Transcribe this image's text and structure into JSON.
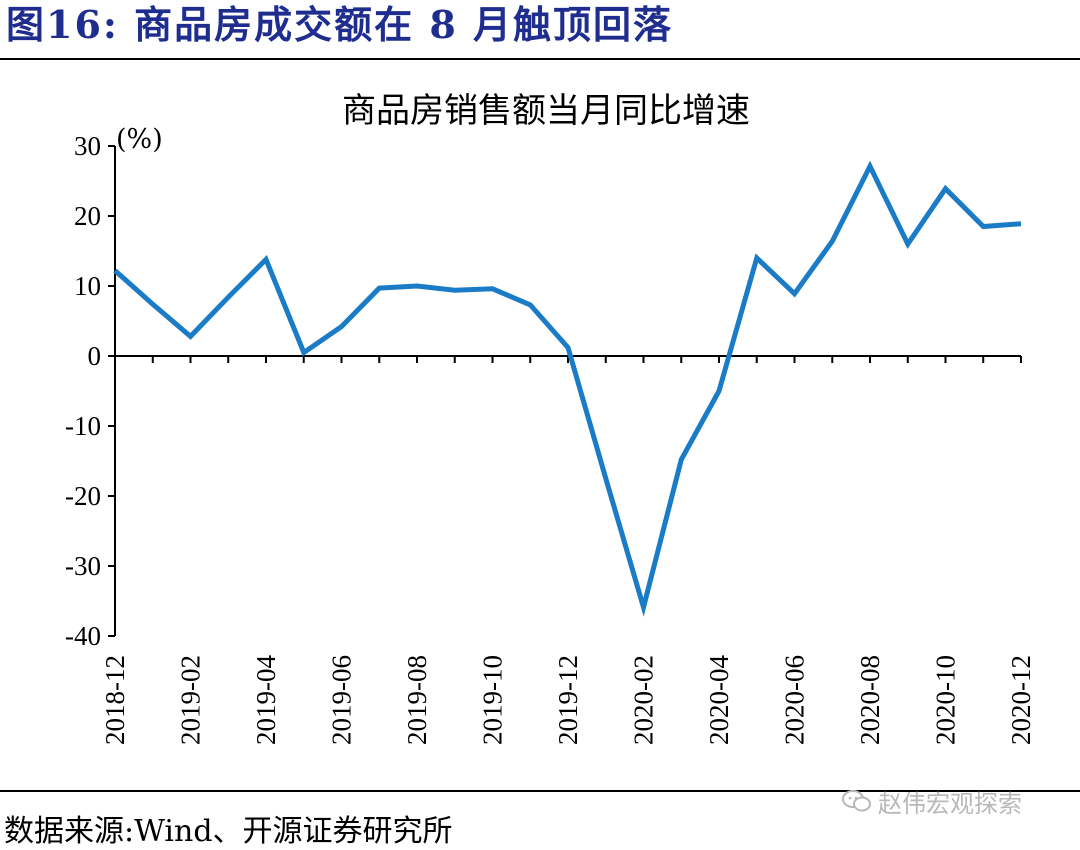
{
  "figure_title": "图16:  商品房成交额在 8 月触顶回落",
  "source": "数据来源:Wind、开源证券研究所",
  "watermark": "赵伟宏观探索",
  "colors": {
    "title": "#1f2d8f",
    "series": "#1a7bc6",
    "axis": "#000000",
    "watermark": "#b8b8b8"
  },
  "icons": {
    "watermark": "wechat-icon"
  },
  "chart_data": {
    "type": "line",
    "title": "商品房销售额当月同比增速",
    "ylabel": "(%)",
    "xlabel": "",
    "ylim": [
      -40,
      30
    ],
    "yticks": [
      30,
      20,
      10,
      0,
      -10,
      -20,
      -30,
      -40
    ],
    "grid": false,
    "legend": "none",
    "x_tick_labels": [
      "2018-12",
      "2019-02",
      "2019-04",
      "2019-06",
      "2019-08",
      "2019-10",
      "2019-12",
      "2020-02",
      "2020-04",
      "2020-06",
      "2020-08",
      "2020-10",
      "2020-12"
    ],
    "x": [
      "2018-12",
      "2019-01",
      "2019-02",
      "2019-03",
      "2019-04",
      "2019-05",
      "2019-06",
      "2019-07",
      "2019-08",
      "2019-09",
      "2019-10",
      "2019-11",
      "2019-12",
      "2020-01",
      "2020-02",
      "2020-03",
      "2020-04",
      "2020-05",
      "2020-06",
      "2020-07",
      "2020-08",
      "2020-09",
      "2020-10",
      "2020-11",
      "2020-12"
    ],
    "series": [
      {
        "values": [
          12.2,
          7.4,
          2.8,
          8.4,
          13.8,
          0.5,
          4.2,
          9.7,
          10.0,
          9.4,
          9.6,
          7.3,
          1.2,
          -17.5,
          -35.9,
          -14.8,
          -5.0,
          14.0,
          8.9,
          16.4,
          27.1,
          16.0,
          23.9,
          18.5,
          18.9
        ]
      }
    ]
  }
}
